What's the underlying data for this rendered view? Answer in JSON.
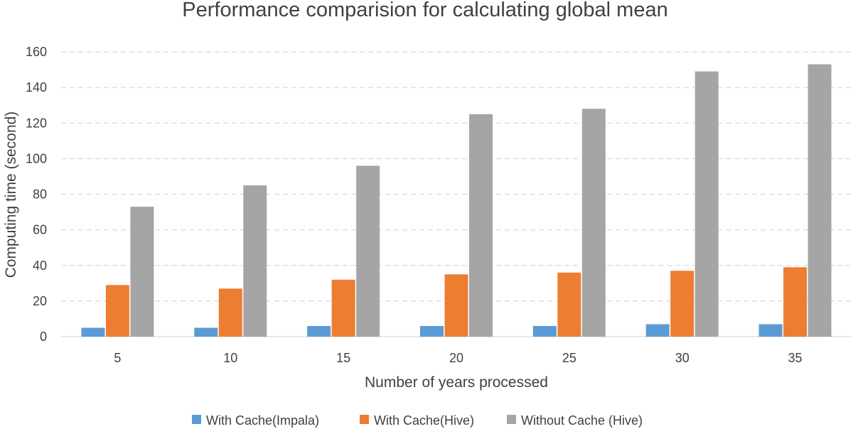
{
  "chart_data": {
    "type": "bar",
    "title": "Performance comparision for calculating global mean",
    "xlabel": "Number of years processed",
    "ylabel": "Computing time (second)",
    "categories": [
      "5",
      "10",
      "15",
      "20",
      "25",
      "30",
      "35"
    ],
    "series": [
      {
        "name": "With Cache(Impala)",
        "color": "#5b9bd5",
        "values": [
          5,
          5,
          6,
          6,
          6,
          7,
          7
        ]
      },
      {
        "name": "With Cache(Hive)",
        "color": "#ed7d31",
        "values": [
          29,
          27,
          32,
          35,
          36,
          37,
          39
        ]
      },
      {
        "name": "Without Cache (Hive)",
        "color": "#a5a5a5",
        "values": [
          73,
          85,
          96,
          125,
          128,
          149,
          153
        ]
      }
    ],
    "ylim": [
      0,
      160
    ],
    "yticks": [
      0,
      20,
      40,
      60,
      80,
      100,
      120,
      140,
      160
    ],
    "grid": true,
    "legend_position": "bottom"
  }
}
